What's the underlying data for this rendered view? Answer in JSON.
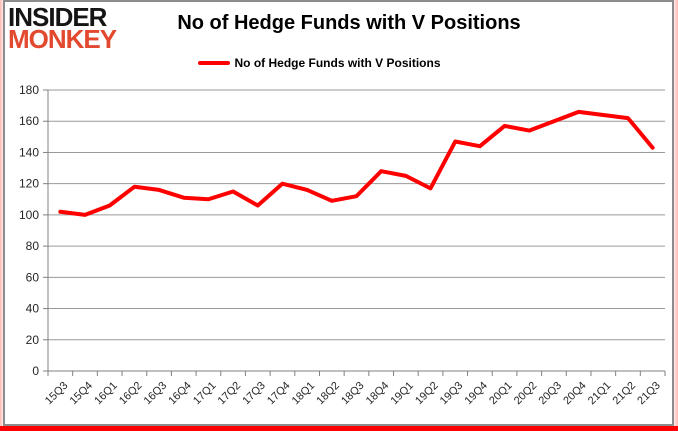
{
  "logo": {
    "line1": "INSIDER",
    "line2": "MONKEY"
  },
  "header": {
    "title": "No of Hedge Funds with V Positions"
  },
  "legend": {
    "label": "No of Hedge Funds with V Positions"
  },
  "colors": {
    "line": "#ff0000",
    "logo_accent": "#e2492f",
    "grid": "#9a9a9a",
    "axis": "#808080",
    "tick_text": "#262626",
    "border": "#8c8c8c",
    "bottom_bar": "#ff0000"
  },
  "chart_data": {
    "type": "line",
    "title": "No of Hedge Funds with V Positions",
    "categories": [
      "15Q3",
      "15Q4",
      "16Q1",
      "16Q2",
      "16Q3",
      "16Q4",
      "17Q1",
      "17Q2",
      "17Q3",
      "17Q4",
      "18Q1",
      "18Q2",
      "18Q3",
      "18Q4",
      "19Q1",
      "19Q2",
      "19Q3",
      "19Q4",
      "20Q1",
      "20Q2",
      "20Q3",
      "20Q4",
      "21Q1",
      "21Q2",
      "21Q3"
    ],
    "series": [
      {
        "name": "No of Hedge Funds with V Positions",
        "color": "#ff0000",
        "values": [
          102,
          100,
          106,
          118,
          116,
          111,
          110,
          115,
          106,
          120,
          116,
          109,
          112,
          128,
          125,
          117,
          147,
          144,
          157,
          154,
          160,
          166,
          164,
          162,
          143
        ]
      }
    ],
    "xlabel": "",
    "ylabel": "",
    "ylim": [
      0,
      180
    ],
    "yticks": [
      0,
      20,
      40,
      60,
      80,
      100,
      120,
      140,
      160,
      180
    ],
    "grid": "horizontal",
    "legend_position": "top-center",
    "x_tick_label_rotation": -45
  }
}
